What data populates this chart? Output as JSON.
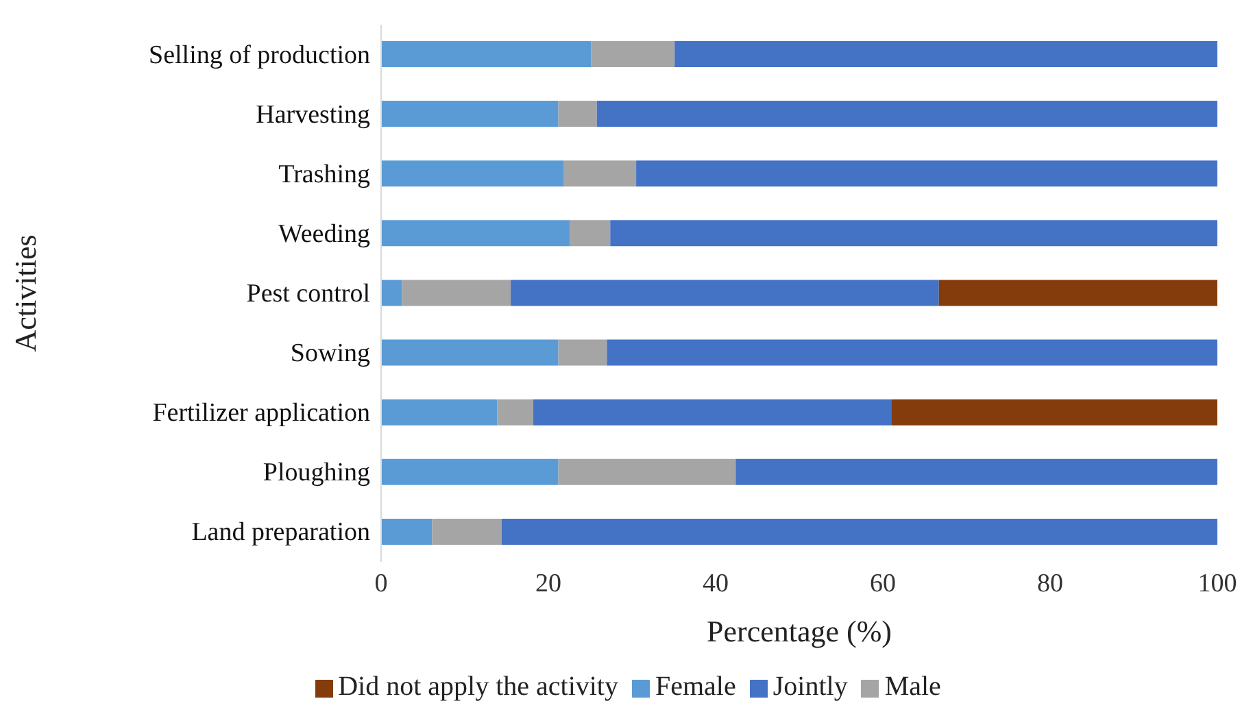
{
  "chart_data": {
    "type": "bar",
    "orientation": "horizontal",
    "stacked": true,
    "xlabel": "Percentage (%)",
    "ylabel": "Activities",
    "categories": [
      "Selling of production",
      "Harvesting",
      "Trashing",
      "Weeding",
      "Pest control",
      "Sowing",
      "Fertilizer application",
      "Ploughing",
      "Land preparation"
    ],
    "series": [
      {
        "name": "Female",
        "color": "#5b9bd5",
        "values": [
          25.1,
          21.2,
          21.8,
          22.6,
          2.5,
          21.2,
          13.9,
          21.2,
          6.1
        ]
      },
      {
        "name": "Male",
        "color": "#a5a5a5",
        "values": [
          10.0,
          4.6,
          8.7,
          4.8,
          13.0,
          5.8,
          4.3,
          21.2,
          8.3
        ]
      },
      {
        "name": "Jointly",
        "color": "#4472c4",
        "values": [
          64.9,
          74.2,
          69.5,
          72.6,
          51.2,
          73.0,
          42.8,
          57.6,
          85.6
        ]
      },
      {
        "name": "Did not apply the activity",
        "color": "#843c0c",
        "values": [
          null,
          null,
          null,
          null,
          33.3,
          null,
          39.0,
          null,
          null
        ]
      }
    ],
    "xlim": [
      0,
      100
    ],
    "xticks": [
      0,
      20,
      40,
      60,
      80,
      100
    ],
    "grid": false,
    "legend": "bottom"
  }
}
